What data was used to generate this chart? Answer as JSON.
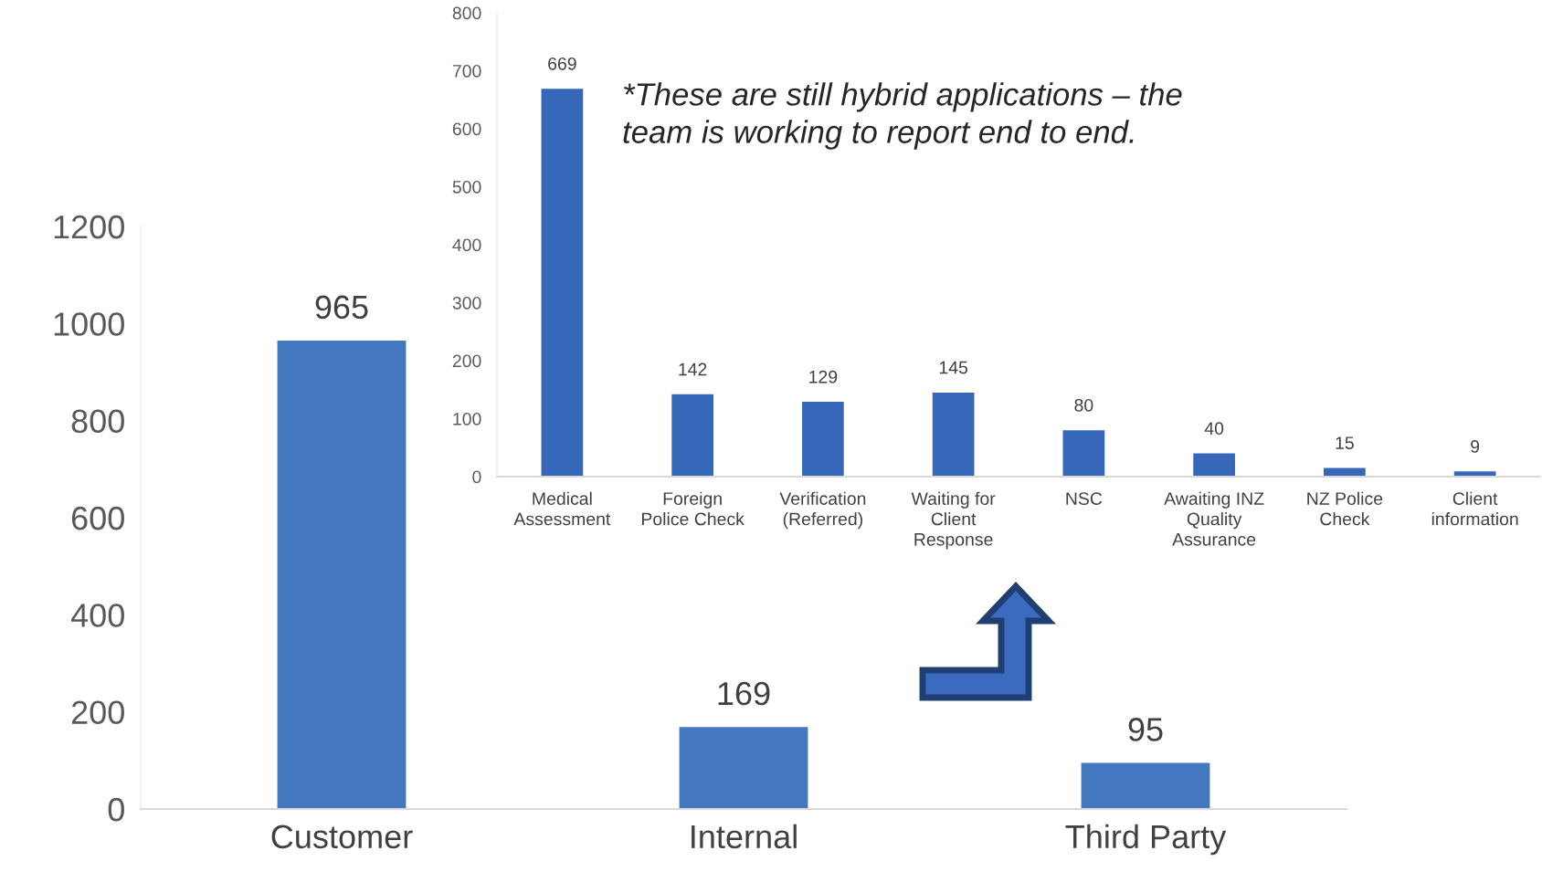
{
  "chart_data": [
    {
      "type": "bar",
      "categories": [
        "Customer",
        "Internal",
        "Third Party"
      ],
      "values": [
        965,
        169,
        95
      ],
      "color": "#4478c0",
      "ylim": [
        0,
        1200
      ],
      "yticks": [
        0,
        200,
        400,
        600,
        800,
        1000,
        1200
      ],
      "data_labels": true,
      "grid": false,
      "legend": false
    },
    {
      "type": "bar",
      "categories": [
        "Medical\nAssessment",
        "Foreign\nPolice Check",
        "Verification\n(Referred)",
        "Waiting for\nClient\nResponse",
        "NSC",
        "Awaiting INZ\nQuality\nAssurance",
        "NZ Police\nCheck",
        "Client\ninformation"
      ],
      "values": [
        669,
        142,
        129,
        145,
        80,
        40,
        15,
        9
      ],
      "color": "#3767b8",
      "ylim": [
        0,
        800
      ],
      "yticks": [
        0,
        100,
        200,
        300,
        400,
        500,
        600,
        700,
        800
      ],
      "data_labels": true,
      "grid": false,
      "legend": false,
      "annotations": [
        "*These are still hybrid applications – the\nteam is working to report end to end."
      ]
    }
  ]
}
